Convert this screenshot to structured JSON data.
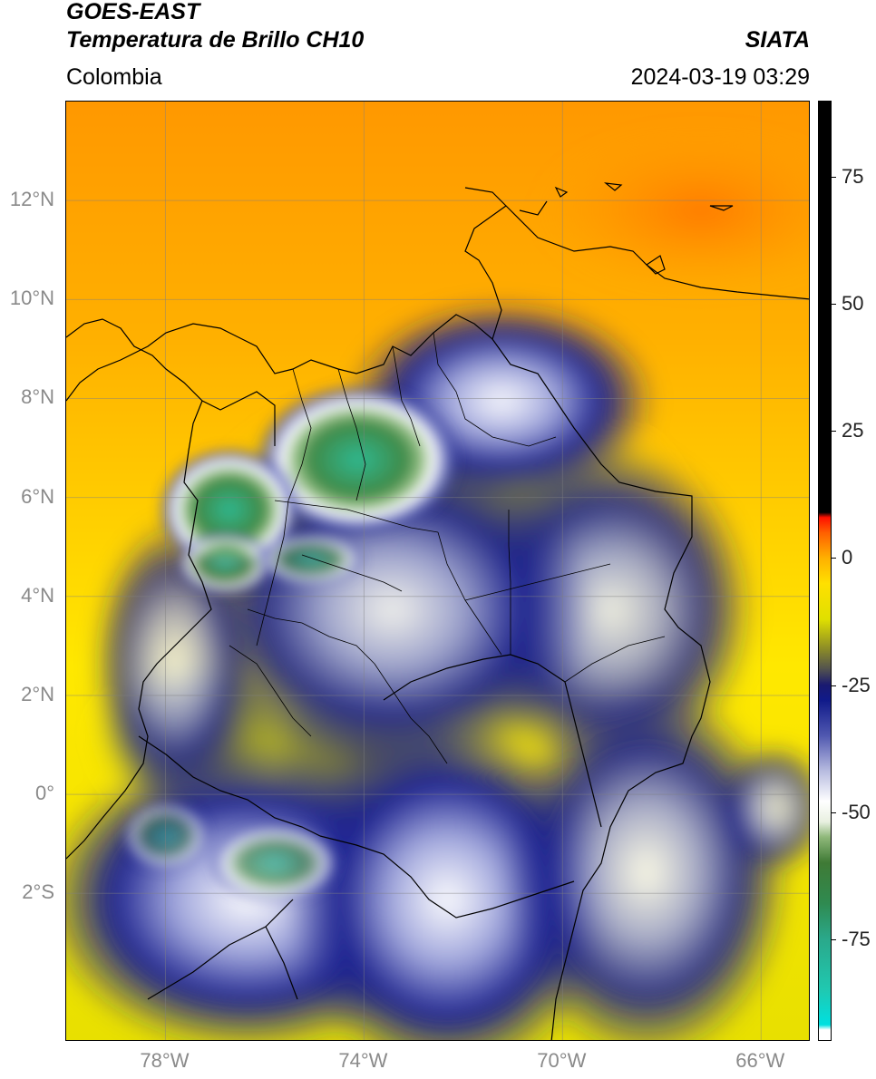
{
  "header": {
    "title_line1": "GOES-EAST",
    "title_line2": "Temperatura de Brillo CH10",
    "brand": "SIATA",
    "region": "Colombia",
    "timestamp": "2024-03-19 03:29"
  },
  "map": {
    "lat_ticks": [
      {
        "label": "12°N",
        "value": 12
      },
      {
        "label": "10°N",
        "value": 10
      },
      {
        "label": "8°N",
        "value": 8
      },
      {
        "label": "6°N",
        "value": 6
      },
      {
        "label": "4°N",
        "value": 4
      },
      {
        "label": "2°N",
        "value": 2
      },
      {
        "label": "0°",
        "value": 0
      },
      {
        "label": "2°S",
        "value": -2
      }
    ],
    "lon_ticks": [
      {
        "label": "78°W",
        "value": -78
      },
      {
        "label": "74°W",
        "value": -74
      },
      {
        "label": "70°W",
        "value": -70
      },
      {
        "label": "66°W",
        "value": -66
      }
    ],
    "lat_range": [
      -5,
      14
    ],
    "lon_range": [
      -80,
      -65
    ],
    "grid": true
  },
  "colorbar": {
    "ticks": [
      {
        "label": "75",
        "value": 75
      },
      {
        "label": "50",
        "value": 50
      },
      {
        "label": "25",
        "value": 25
      },
      {
        "label": "0",
        "value": 0
      },
      {
        "label": "-25",
        "value": -25
      },
      {
        "label": "-50",
        "value": -50
      },
      {
        "label": "-75",
        "value": -75
      }
    ],
    "range": [
      -95,
      90
    ],
    "stops": [
      {
        "v": -95,
        "c": "#ffffff"
      },
      {
        "v": -93,
        "c": "#ffffff"
      },
      {
        "v": -92,
        "c": "#00e0e0"
      },
      {
        "v": -85,
        "c": "#20c8b0"
      },
      {
        "v": -75,
        "c": "#2aa88a"
      },
      {
        "v": -68,
        "c": "#2f8a50"
      },
      {
        "v": -60,
        "c": "#3f7a35"
      },
      {
        "v": -55,
        "c": "#8fb87a"
      },
      {
        "v": -52,
        "c": "#e8f0e0"
      },
      {
        "v": -48,
        "c": "#ffffff"
      },
      {
        "v": -42,
        "c": "#b8bce0"
      },
      {
        "v": -35,
        "c": "#5058b0"
      },
      {
        "v": -28,
        "c": "#101a8a"
      },
      {
        "v": -25,
        "c": "#1a1a70"
      },
      {
        "v": -22,
        "c": "#505050"
      },
      {
        "v": -18,
        "c": "#8a8a28"
      },
      {
        "v": -12,
        "c": "#e0e000"
      },
      {
        "v": -5,
        "c": "#ffe000"
      },
      {
        "v": 0,
        "c": "#ffb000"
      },
      {
        "v": 5,
        "c": "#ff6000"
      },
      {
        "v": 8,
        "c": "#ff1000"
      },
      {
        "v": 9,
        "c": "#000000"
      },
      {
        "v": 90,
        "c": "#000000"
      }
    ]
  }
}
